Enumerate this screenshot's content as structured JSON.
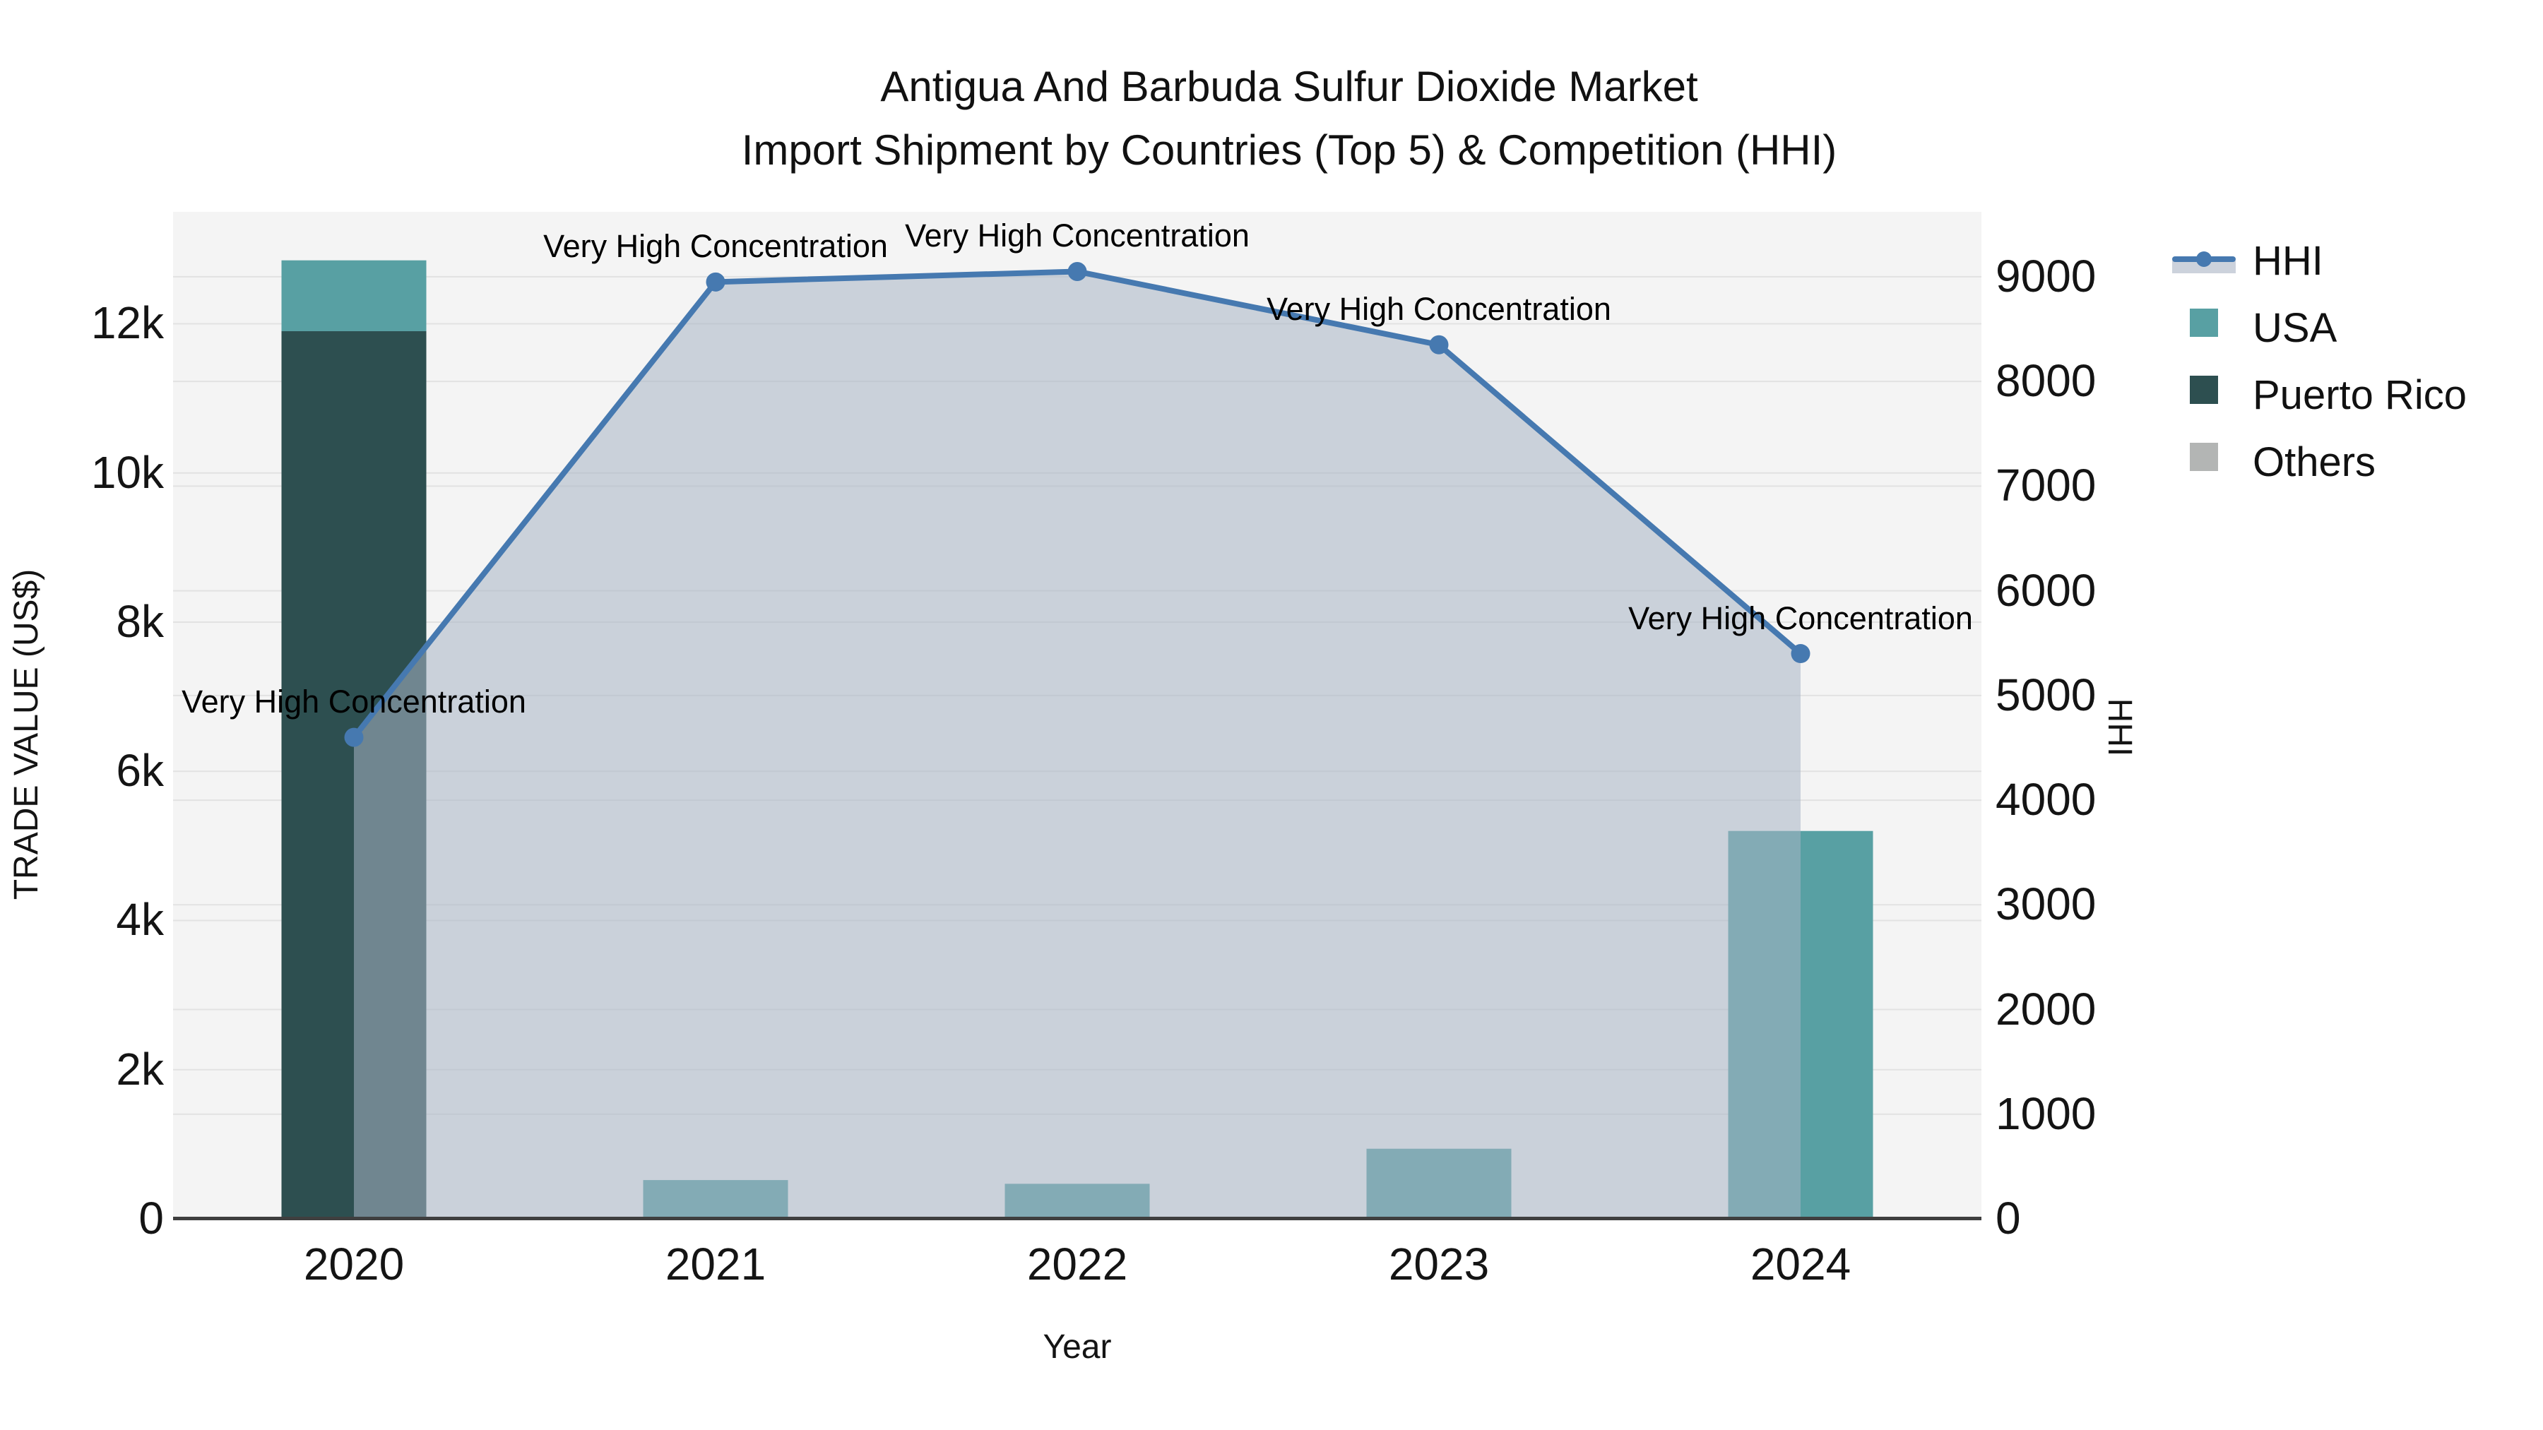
{
  "title": {
    "line1": "Antigua And Barbuda Sulfur Dioxide Market",
    "line2": "Import Shipment by Countries (Top 5) & Competition (HHI)"
  },
  "axes": {
    "x": {
      "title": "Year",
      "categories": [
        "2020",
        "2021",
        "2022",
        "2023",
        "2024"
      ]
    },
    "left": {
      "title": "TRADE VALUE (US$)",
      "tick_labels": [
        "0",
        "2k",
        "4k",
        "6k",
        "8k",
        "10k",
        "12k"
      ],
      "tick_values": [
        0,
        2000,
        4000,
        6000,
        8000,
        10000,
        12000
      ],
      "range": [
        0,
        13500
      ]
    },
    "right": {
      "title": "HHI",
      "tick_labels": [
        "0",
        "1000",
        "2000",
        "3000",
        "4000",
        "5000",
        "6000",
        "7000",
        "8000",
        "9000"
      ],
      "tick_values": [
        0,
        1000,
        2000,
        3000,
        4000,
        5000,
        6000,
        7000,
        8000,
        9000
      ],
      "range": [
        0,
        9620
      ]
    }
  },
  "legend": {
    "items": [
      {
        "label": "HHI",
        "type": "line",
        "color": "#4679b0"
      },
      {
        "label": "USA",
        "type": "square",
        "color": "#58a0a3"
      },
      {
        "label": "Puerto Rico",
        "type": "square",
        "color": "#2d4f50"
      },
      {
        "label": "Others",
        "type": "square",
        "color": "#b3b5b4"
      }
    ]
  },
  "colors": {
    "plot_bg": "#f4f4f4",
    "grid": "#e2e2e2",
    "axis_line": "#3f3f3f",
    "hhi_line": "#4679b0",
    "hhi_area": "rgba(168,180,197,0.55)"
  },
  "chart_data": {
    "type": "combo-stacked-bar-line-area",
    "title": "Antigua And Barbuda Sulfur Dioxide Market — Import Shipment by Countries (Top 5) & Competition (HHI)",
    "categories": [
      "2020",
      "2021",
      "2022",
      "2023",
      "2024"
    ],
    "bar_series": [
      {
        "name": "Puerto Rico",
        "color": "#2d4f50",
        "axis": "left",
        "values": [
          11900,
          0,
          0,
          0,
          0
        ]
      },
      {
        "name": "USA",
        "color": "#58a0a3",
        "axis": "left",
        "values": [
          950,
          520,
          470,
          940,
          5200
        ]
      },
      {
        "name": "Others",
        "color": "#b3b5b4",
        "axis": "left",
        "values": [
          0,
          0,
          0,
          0,
          0
        ]
      }
    ],
    "line_series": {
      "name": "HHI",
      "axis": "right",
      "values": [
        4600,
        8950,
        9050,
        8350,
        5400
      ],
      "annotations": [
        "Very High Concentration",
        "Very High Concentration",
        "Very High Concentration",
        "Very High Concentration",
        "Very High Concentration"
      ]
    },
    "xlabel": "Year",
    "ylabel_left": "TRADE VALUE (US$)",
    "ylabel_right": "HHI",
    "ylim_left": [
      0,
      13500
    ],
    "ylim_right": [
      0,
      9620
    ],
    "grid": true,
    "legend_position": "right"
  }
}
